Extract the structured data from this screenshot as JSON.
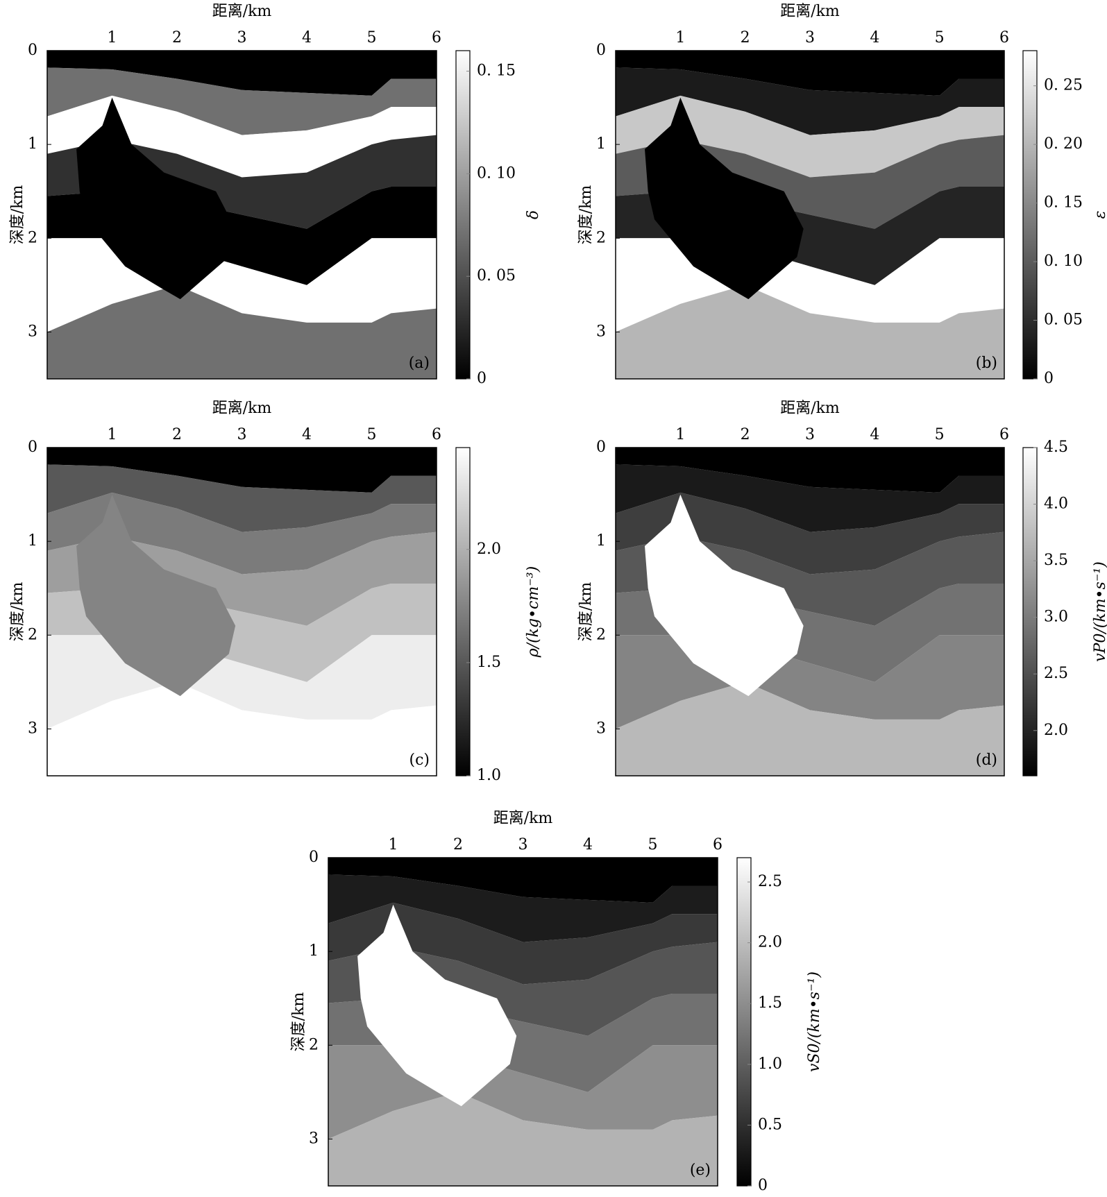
{
  "chart_data": [
    {
      "type": "heatmap",
      "xlabel": "距离/km",
      "ylabel": "深度/km",
      "xlim": [
        0,
        6
      ],
      "xticks": [
        1,
        2,
        3,
        4,
        5,
        6
      ],
      "ylim": [
        0,
        3.5
      ],
      "yticks": [
        0,
        1,
        2,
        3
      ],
      "panel_label": "(a)",
      "values": [
        0,
        0.07,
        0.16,
        0.03,
        0,
        0.16,
        0.07,
        0
      ],
      "colorbar": {
        "label": "δ",
        "lim": [
          0,
          0.16
        ],
        "ticks": [
          0,
          {
            "value": 0.05,
            "label": "0. 05"
          },
          {
            "value": 0.1,
            "label": "0. 10"
          },
          {
            "value": 0.15,
            "label": "0. 15"
          }
        ]
      }
    },
    {
      "type": "heatmap",
      "xlabel": "距离/km",
      "ylabel": "深度/km",
      "xlim": [
        0,
        6
      ],
      "xticks": [
        1,
        2,
        3,
        4,
        5,
        6
      ],
      "ylim": [
        0,
        3.5
      ],
      "yticks": [
        0,
        1,
        2,
        3
      ],
      "panel_label": "(b)",
      "values": [
        0,
        0.03,
        0.22,
        0.1,
        0.04,
        0.28,
        0.2,
        0
      ],
      "colorbar": {
        "label": "ε",
        "lim": [
          0,
          0.28
        ],
        "ticks": [
          0,
          {
            "value": 0.05,
            "label": "0. 05"
          },
          {
            "value": 0.1,
            "label": "0. 10"
          },
          {
            "value": 0.15,
            "label": "0. 15"
          },
          {
            "value": 0.2,
            "label": "0. 20"
          },
          {
            "value": 0.25,
            "label": "0. 25"
          }
        ]
      }
    },
    {
      "type": "heatmap",
      "xlabel": "距离/km",
      "ylabel": "深度/km",
      "xlim": [
        0,
        6
      ],
      "xticks": [
        1,
        2,
        3,
        4,
        5,
        6
      ],
      "ylim": [
        0,
        3.5
      ],
      "yticks": [
        0,
        1,
        2,
        3
      ],
      "panel_label": "(c)",
      "values": [
        1.0,
        1.5,
        1.7,
        1.9,
        2.1,
        2.35,
        2.45,
        1.75
      ],
      "colorbar": {
        "label": "ρ/(kg•cm⁻³)",
        "lim": [
          1.0,
          2.45
        ],
        "ticks": [
          {
            "value": 1.0,
            "label": "1.0"
          },
          1.5,
          {
            "value": 2.0,
            "label": "2.0"
          }
        ]
      }
    },
    {
      "type": "heatmap",
      "xlabel": "距离/km",
      "ylabel": "深度/km",
      "xlim": [
        0,
        6
      ],
      "xticks": [
        1,
        2,
        3,
        4,
        5,
        6
      ],
      "ylim": [
        0,
        3.5
      ],
      "yticks": [
        0,
        1,
        2,
        3
      ],
      "panel_label": "(d)",
      "values": [
        1.6,
        1.9,
        2.3,
        2.6,
        2.9,
        3.1,
        3.7,
        4.5
      ],
      "colorbar": {
        "label": "vP0/(km•s⁻¹)",
        "lim": [
          1.6,
          4.5
        ],
        "ticks": [
          {
            "value": 2.0,
            "label": "2.0"
          },
          2.5,
          {
            "value": 3.0,
            "label": "3.0"
          },
          3.5,
          {
            "value": 4.0,
            "label": "4.0"
          },
          4.5
        ]
      }
    },
    {
      "type": "heatmap",
      "xlabel": "距离/km",
      "ylabel": "深度/km",
      "xlim": [
        0,
        6
      ],
      "xticks": [
        1,
        2,
        3,
        4,
        5,
        6
      ],
      "ylim": [
        0,
        3.5
      ],
      "yticks": [
        0,
        1,
        2,
        3
      ],
      "panel_label": "(e)",
      "values": [
        0,
        0.3,
        0.6,
        0.9,
        1.2,
        1.5,
        1.9,
        2.7
      ],
      "colorbar": {
        "label": "vS0/(km•s⁻¹)",
        "lim": [
          0,
          2.7
        ],
        "ticks": [
          0,
          0.5,
          {
            "value": 1.0,
            "label": "1.0"
          },
          1.5,
          {
            "value": 2.0,
            "label": "2.0"
          },
          2.5
        ]
      }
    }
  ]
}
